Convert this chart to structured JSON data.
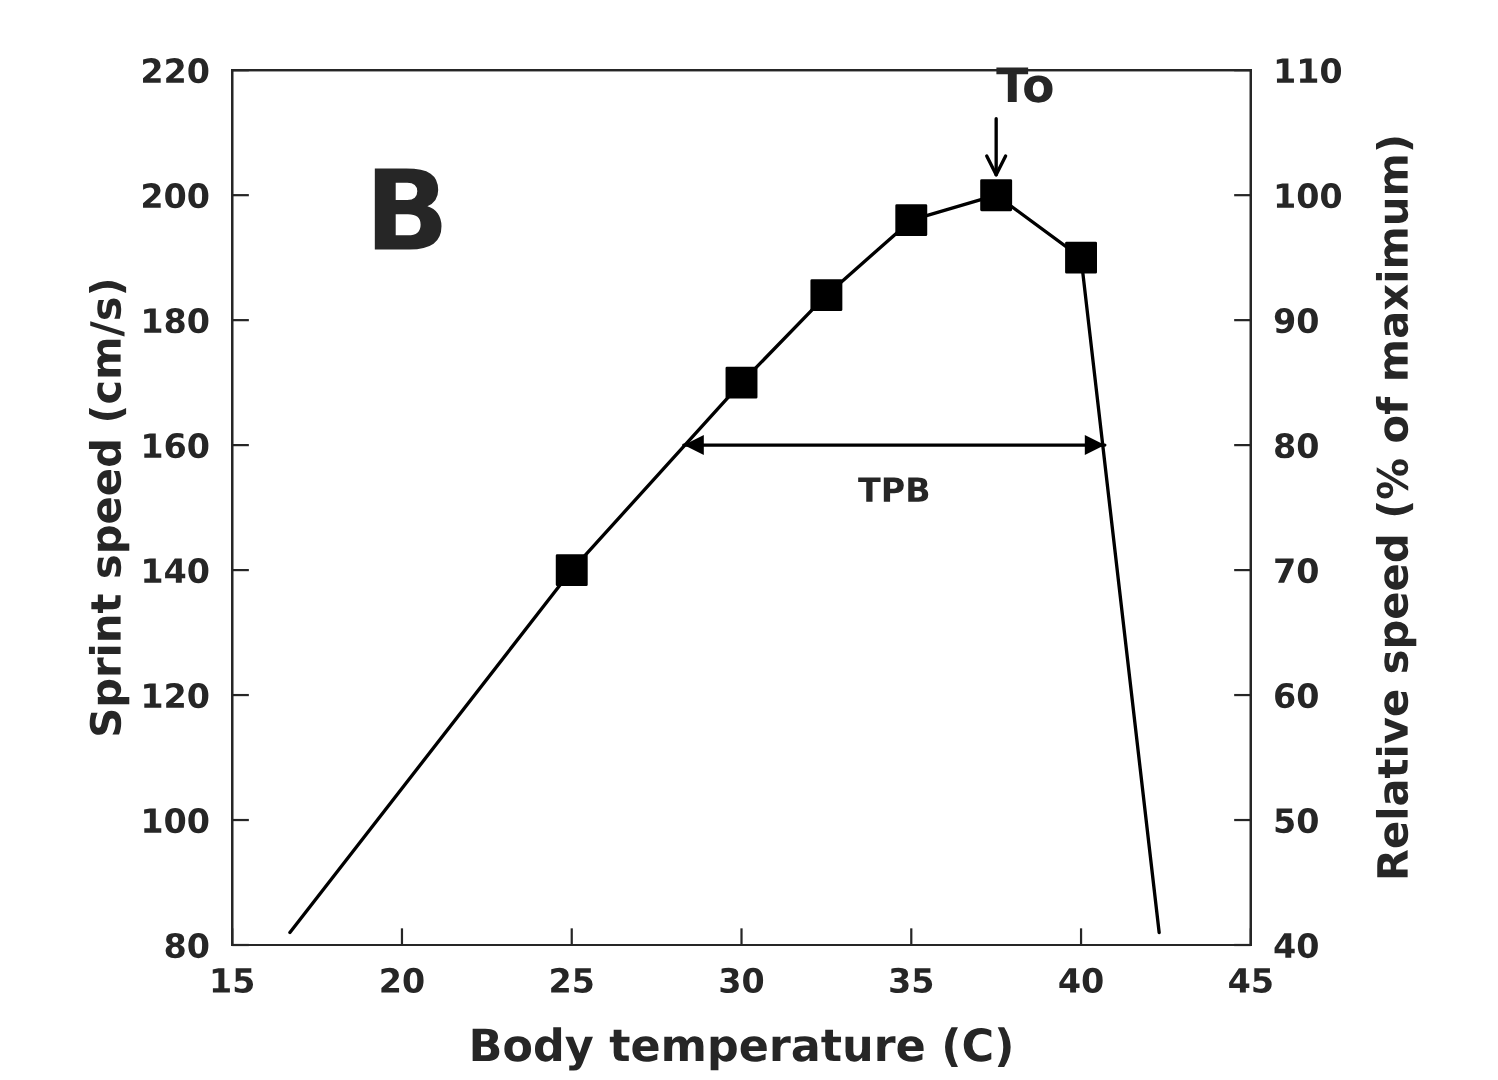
{
  "chart_data": {
    "type": "line",
    "xlabel": "Body temperature (C)",
    "ylabel": "Sprint speed (cm/s)",
    "y2label": "Relative speed (% of maximum)",
    "series": [
      {
        "color": "#000000",
        "x": [
          16.7,
          25,
          30,
          32.5,
          35,
          37.5,
          40,
          42.3
        ],
        "values": [
          82,
          140,
          170,
          184,
          196,
          200,
          190,
          82
        ],
        "marker": "none"
      },
      {
        "type": "scatter",
        "color": "#000000",
        "x": [
          25,
          30,
          32.5,
          35,
          37.5,
          40
        ],
        "values": [
          140,
          170,
          184,
          196,
          200,
          190
        ],
        "marker": "square"
      },
      {
        "color": "#000000",
        "x": [
          28.3,
          40.7
        ],
        "values": [
          160,
          160
        ],
        "marker": "none"
      }
    ],
    "xlim": [
      15,
      45
    ],
    "xticks": [
      15,
      20,
      25,
      30,
      35,
      40,
      45
    ],
    "ylim": [
      80,
      220
    ],
    "yticks": [
      80,
      100,
      120,
      140,
      160,
      180,
      200,
      220
    ],
    "y2lim": [
      40,
      110
    ],
    "y2ticks": [
      40,
      50,
      60,
      70,
      80,
      90,
      100,
      110
    ],
    "annotations": [
      "B",
      {
        "text": "To",
        "x": 37.5,
        "y": 200
      },
      {
        "text": "TPB",
        "x": 34.5,
        "y": 160
      }
    ],
    "grid": false,
    "legend": false
  }
}
